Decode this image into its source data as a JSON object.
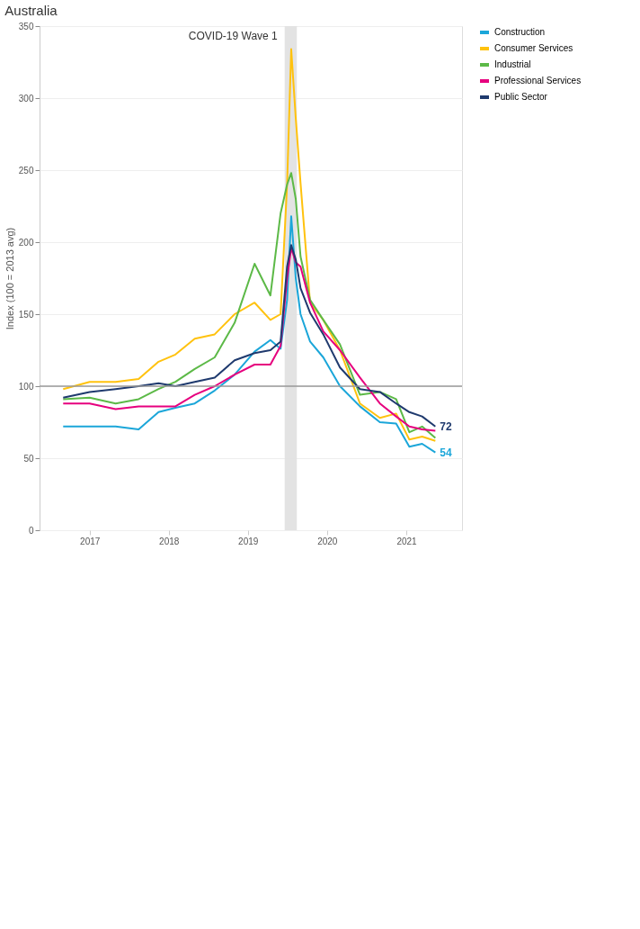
{
  "chart_data": {
    "type": "line",
    "title": "Australia",
    "ylabel": "Index (100 = 2013 avg)",
    "x": [
      "2016-09-01",
      "2017-01-01",
      "2017-05-01",
      "2017-08-15",
      "2017-11-15",
      "2018-02-01",
      "2018-05-01",
      "2018-08-01",
      "2018-11-01",
      "2019-02-01",
      "2019-04-15",
      "2019-06-01",
      "2019-07-01",
      "2019-07-20",
      "2019-08-10",
      "2019-09-01",
      "2019-10-15",
      "2019-12-15",
      "2020-03-01",
      "2020-06-01",
      "2020-09-01",
      "2020-11-15",
      "2021-01-15",
      "2021-03-15",
      "2021-05-15"
    ],
    "series": [
      {
        "name": "Construction",
        "color": "#1ba6d9",
        "values": [
          72,
          72,
          72,
          70,
          82,
          85,
          88,
          97,
          108,
          124,
          132,
          126,
          160,
          218,
          175,
          150,
          131,
          120,
          100,
          86,
          75,
          74,
          58,
          60,
          54
        ]
      },
      {
        "name": "Consumer Services",
        "color": "#ffc20e",
        "values": [
          98,
          103,
          103,
          105,
          117,
          122,
          133,
          136,
          150,
          158,
          146,
          150,
          240,
          334,
          286,
          241,
          158,
          146,
          125,
          88,
          78,
          81,
          63,
          65,
          62
        ]
      },
      {
        "name": "Industrial",
        "color": "#5cb947",
        "values": [
          91,
          92,
          88,
          91,
          98,
          103,
          112,
          120,
          144,
          185,
          163,
          220,
          240,
          248,
          230,
          190,
          160,
          146,
          129,
          94,
          96,
          91,
          68,
          72,
          64
        ]
      },
      {
        "name": "Professional Services",
        "color": "#e6007e",
        "values": [
          88,
          88,
          84,
          86,
          86,
          86,
          94,
          100,
          108,
          115,
          115,
          128,
          175,
          196,
          186,
          183,
          158,
          138,
          125,
          106,
          88,
          79,
          72,
          70,
          69
        ]
      },
      {
        "name": "Public Sector",
        "color": "#1f3a6e",
        "values": [
          92,
          96,
          98,
          100,
          102,
          100,
          103,
          106,
          118,
          123,
          125,
          131,
          183,
          198,
          188,
          168,
          151,
          136,
          113,
          98,
          96,
          88,
          82,
          79,
          72
        ]
      }
    ],
    "ylim": [
      0,
      350
    ],
    "yticks": [
      0,
      50,
      100,
      150,
      200,
      250,
      300,
      350
    ],
    "xlim": [
      "2016-05-15",
      "2021-09-15"
    ],
    "xticks": [
      {
        "value": "2017-01-01",
        "label": "2017"
      },
      {
        "value": "2018-01-01",
        "label": "2018"
      },
      {
        "value": "2019-01-01",
        "label": "2019"
      },
      {
        "value": "2020-01-01",
        "label": "2020"
      },
      {
        "value": "2021-01-01",
        "label": "2021"
      }
    ],
    "ref_lines": [
      {
        "axis": "y",
        "value": 100,
        "color": "#999999"
      }
    ],
    "bands": [
      {
        "axis": "x",
        "from": "2019-06-20",
        "to": "2019-08-15",
        "label": "COVID-19 Wave 1",
        "color": "#e0e0e0"
      }
    ],
    "annotations": [
      {
        "text": "72",
        "x": "2021-05-15",
        "y": 72
      },
      {
        "text": "54",
        "x": "2021-05-15",
        "y": 54
      }
    ],
    "grid": "y",
    "legend": "right",
    "line_style": "solid",
    "marker": "none"
  }
}
